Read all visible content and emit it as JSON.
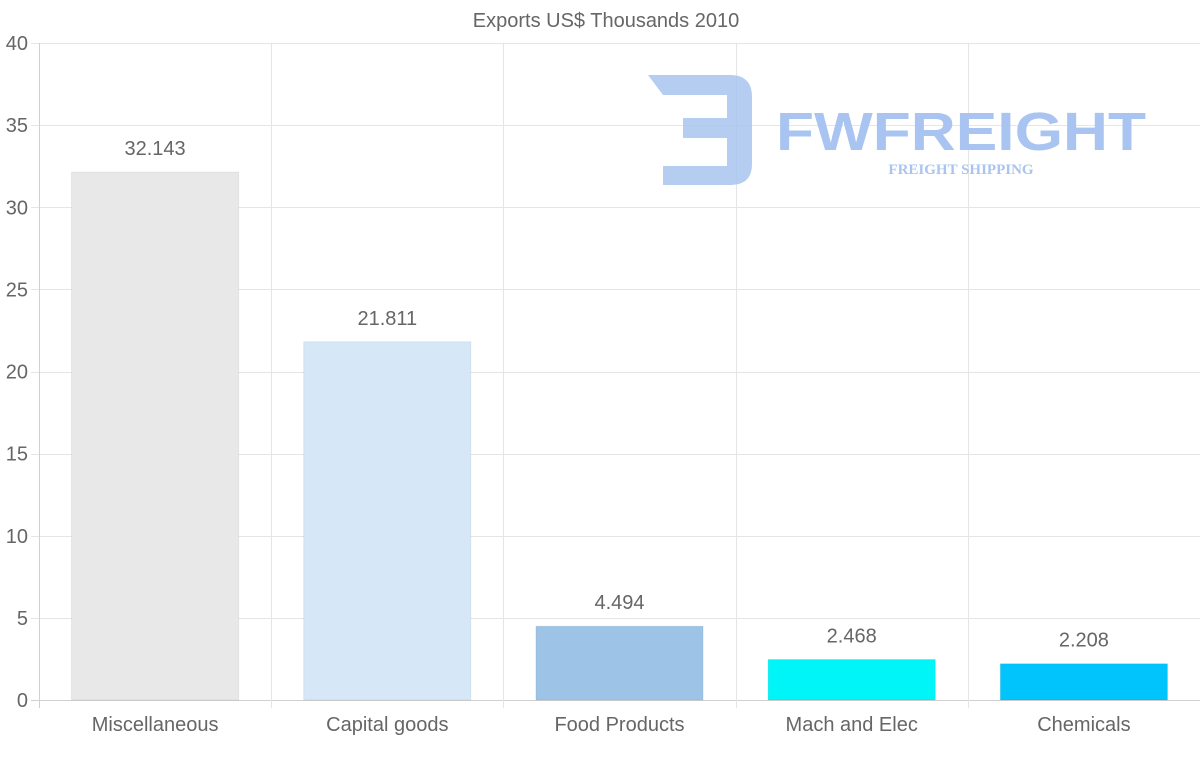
{
  "chart_data": {
    "type": "bar",
    "title": "Exports US$ Thousands 2010",
    "categories": [
      "Miscellaneous",
      "Capital goods",
      "Food Products",
      "Mach and Elec",
      "Chemicals"
    ],
    "values": [
      32.143,
      21.811,
      4.494,
      2.468,
      2.208
    ],
    "value_labels": [
      "32.143",
      "21.811",
      "4.494",
      "2.468",
      "2.208"
    ],
    "colors": [
      "#e8e8e8",
      "#d6e7f8",
      "#9dc3e6",
      "#00f5f8",
      "#00c4fb"
    ],
    "ylim": [
      0,
      40
    ],
    "yticks": [
      0,
      5,
      10,
      15,
      20,
      25,
      30,
      35,
      40
    ],
    "grid": true,
    "xlabel": "",
    "ylabel": ""
  },
  "watermark": {
    "brand": "FWFREIGHT",
    "tagline": "FREIGHT SHIPPING",
    "color": "#a9c4f0"
  }
}
